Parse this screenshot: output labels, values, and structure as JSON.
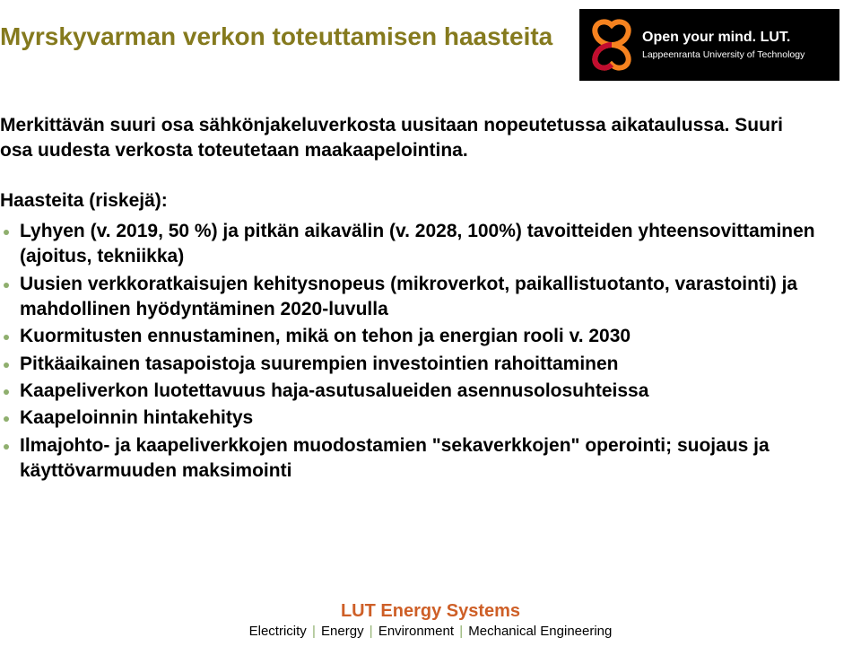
{
  "colors": {
    "title": "#857a1e",
    "body": "#000000",
    "bulletMarker": "#8faf6e",
    "logoBg": "#000000",
    "logoMarkOrange": "#f5821f",
    "logoMarkRed": "#c10d2f",
    "footerAccent": "#8faf6e",
    "footerMain": "#ce5f27"
  },
  "fonts": {
    "bodyFamily": "Comic Sans MS, Chalkboard SE, Segoe Script, cursive, sans-serif",
    "logoFamily": "Arial, Helvetica, sans-serif",
    "titleSize": 28,
    "bodySize": 21,
    "footer1Size": 20,
    "footer2Size": 15
  },
  "title": "Myrskyvarman verkon toteuttamisen haasteita",
  "logo": {
    "line1": "Open your mind. LUT.",
    "line2": "Lappeenranta University of Technology"
  },
  "lead": "Merkittävän suuri osa sähkönjakeluverkosta uusitaan nopeutetussa aikataulussa. Suuri osa uudesta verkosta toteutetaan maakaapelointina.",
  "subhead": "Haasteita (riskejä):",
  "bullets": [
    "Lyhyen (v. 2019, 50 %) ja pitkän aikavälin (v. 2028, 100%) tavoitteiden yhteensovittaminen (ajoitus, tekniikka)",
    "Uusien verkkoratkaisujen kehitysnopeus (mikroverkot, paikallistuotanto, varastointi) ja mahdollinen hyödyntäminen 2020-luvulla",
    "Kuormitusten ennustaminen, mikä on tehon ja energian rooli v. 2030",
    "Pitkäaikainen tasapoistoja suurempien investointien rahoittaminen",
    "Kaapeliverkon luotettavuus haja-asutusalueiden asennusolosuhteissa",
    "Kaapeloinnin hintakehitys",
    "Ilmajohto- ja kaapeliverkkojen muodostamien \"sekaverkkojen\" operointi; suojaus ja käyttövarmuuden maksimointi"
  ],
  "footer": {
    "line1": "LUT Energy Systems",
    "line2_parts": [
      "Electricity",
      "Energy",
      "Environment",
      "Mechanical Engineering"
    ]
  }
}
